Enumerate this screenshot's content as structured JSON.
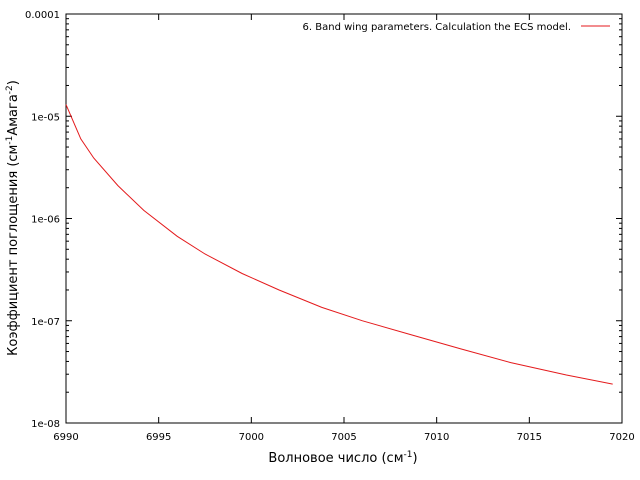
{
  "chart_data": {
    "type": "line",
    "title": "",
    "xlabel_main": "Волновое число (см",
    "xlabel_sup": "-1",
    "xlabel_end": ")",
    "ylabel_main": "Коэффициент поглощения (см",
    "ylabel_sup1": "-1",
    "ylabel_mid": "Амага",
    "ylabel_sup2": "-2",
    "ylabel_end": ")",
    "xlim": [
      6990,
      7020
    ],
    "ylim": [
      1e-08,
      0.0001
    ],
    "yscale": "log",
    "grid": false,
    "legend_position": "top-right",
    "x_tick_labels": [
      "6990",
      "6995",
      "7000",
      "7005",
      "7010",
      "7015",
      "7020"
    ],
    "y_tick_labels": [
      "1e-08",
      "1e-07",
      "1e-06",
      "1e-05",
      "0.0001"
    ],
    "series": [
      {
        "name": "6. Band wing parameters. Calculation the ECS model.",
        "color": "#e41a1c",
        "x": [
          6990.0,
          6990.8,
          6991.5,
          6992.8,
          6994.2,
          6996.0,
          6997.5,
          6999.5,
          7001.5,
          7003.8,
          7006.0,
          7008.5,
          7011.3,
          7014.0,
          7017.0,
          7019.5
        ],
        "y": [
          1.3e-05,
          6e-06,
          3.9e-06,
          2.1e-06,
          1.2e-06,
          6.7e-07,
          4.5e-07,
          2.9e-07,
          2e-07,
          1.35e-07,
          1e-07,
          7.4e-08,
          5.3e-08,
          3.9e-08,
          2.95e-08,
          2.4e-08
        ]
      }
    ]
  }
}
